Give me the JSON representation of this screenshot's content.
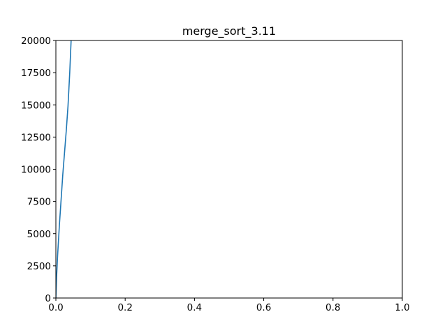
{
  "chart_data": {
    "type": "line",
    "title": "merge_sort_3.11",
    "xlabel": "",
    "ylabel": "",
    "xlim": [
      0,
      1
    ],
    "ylim": [
      0,
      20000
    ],
    "grid": false,
    "x_ticks": [
      0.0,
      0.2,
      0.4,
      0.6,
      0.8,
      1.0
    ],
    "x_tick_labels": [
      "0.0",
      "0.2",
      "0.4",
      "0.6",
      "0.8",
      "1.0"
    ],
    "y_ticks": [
      0,
      2500,
      5000,
      7500,
      10000,
      12500,
      15000,
      17500,
      20000
    ],
    "y_tick_labels": [
      "0",
      "2500",
      "5000",
      "7500",
      "10000",
      "12500",
      "15000",
      "17500",
      "20000"
    ],
    "series": [
      {
        "color": "#1f77b4",
        "x": [
          0.0,
          0.002,
          0.005,
          0.01,
          0.015,
          0.02,
          0.025,
          0.03,
          0.035,
          0.04,
          0.044
        ],
        "y": [
          0,
          1600,
          3300,
          5600,
          7600,
          9600,
          11300,
          13000,
          14900,
          17500,
          20000
        ]
      }
    ]
  }
}
